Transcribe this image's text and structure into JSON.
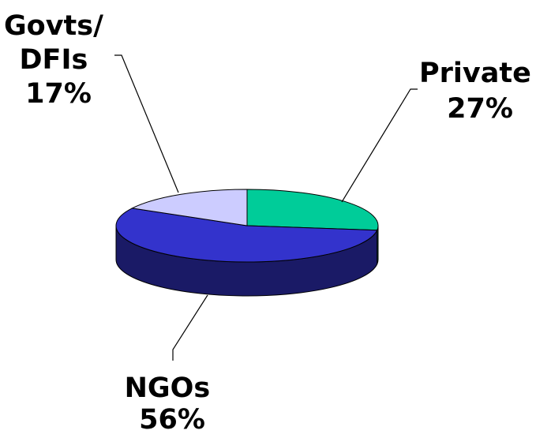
{
  "chart_data": {
    "type": "pie",
    "style": "3d",
    "categories": [
      "Private",
      "NGOs",
      "Govts/ DFIs"
    ],
    "values": [
      27,
      56,
      17
    ],
    "value_labels": [
      "27%",
      "56%",
      "17%"
    ],
    "colors": {
      "top": [
        "#00CC99",
        "#3333CC",
        "#CCCCFF"
      ],
      "side": [
        "#009973",
        "#1A1A66",
        "#9999CC"
      ]
    },
    "labels": [
      {
        "lines": [
          "Private",
          "27%"
        ]
      },
      {
        "lines": [
          "NGOs",
          "56%"
        ]
      },
      {
        "lines": [
          "Govts/",
          "DFIs",
          "17%"
        ]
      }
    ],
    "legend": "none"
  }
}
